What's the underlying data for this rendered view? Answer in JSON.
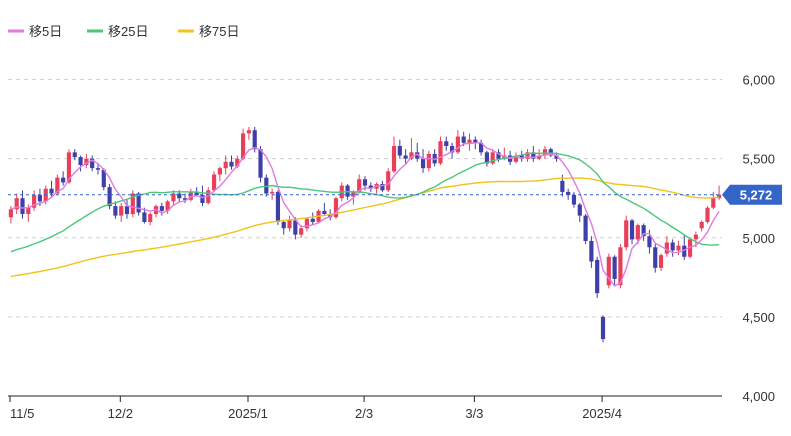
{
  "colors": {
    "ma5": "#e07be0",
    "ma25": "#4cc77a",
    "ma75": "#f0c419",
    "up": "#e8405a",
    "down": "#3f3fa8",
    "grid": "#d0d0d0",
    "axis": "#222222",
    "last_price": "#3465c8"
  },
  "chart_data": {
    "type": "candlestick",
    "legend": [
      {
        "key": "ma5",
        "label": "移5日"
      },
      {
        "key": "ma25",
        "label": "移25日"
      },
      {
        "key": "ma75",
        "label": "移75日"
      }
    ],
    "legend_position": "top-left",
    "ylim": [
      4000,
      6250
    ],
    "y_ticks": [
      {
        "value": 4000,
        "label": "4,000"
      },
      {
        "value": 4500,
        "label": "4,500"
      },
      {
        "value": 5000,
        "label": "5,000"
      },
      {
        "value": 5500,
        "label": "5,500"
      },
      {
        "value": 6000,
        "label": "6,000"
      }
    ],
    "x_ticks": [
      {
        "index": 0,
        "label": "11/5"
      },
      {
        "index": 19,
        "label": "12/2"
      },
      {
        "index": 41,
        "label": "2025/1"
      },
      {
        "index": 61,
        "label": "2/3"
      },
      {
        "index": 80,
        "label": "3/3"
      },
      {
        "index": 102,
        "label": "2025/4"
      }
    ],
    "grid": true,
    "last_price": {
      "value": 5272,
      "label": "5,272"
    },
    "candles": [
      [
        5130,
        5200,
        5090,
        5180
      ],
      [
        5180,
        5280,
        5150,
        5250
      ],
      [
        5250,
        5300,
        5120,
        5150
      ],
      [
        5150,
        5210,
        5100,
        5190
      ],
      [
        5190,
        5300,
        5170,
        5270
      ],
      [
        5270,
        5310,
        5200,
        5230
      ],
      [
        5230,
        5330,
        5210,
        5310
      ],
      [
        5310,
        5360,
        5260,
        5280
      ],
      [
        5280,
        5400,
        5270,
        5380
      ],
      [
        5380,
        5420,
        5330,
        5350
      ],
      [
        5350,
        5560,
        5340,
        5540
      ],
      [
        5540,
        5560,
        5490,
        5510
      ],
      [
        5510,
        5520,
        5420,
        5460
      ],
      [
        5460,
        5530,
        5440,
        5500
      ],
      [
        5500,
        5520,
        5420,
        5440
      ],
      [
        5440,
        5470,
        5400,
        5430
      ],
      [
        5430,
        5440,
        5300,
        5320
      ],
      [
        5320,
        5340,
        5180,
        5200
      ],
      [
        5200,
        5230,
        5120,
        5140
      ],
      [
        5140,
        5220,
        5100,
        5200
      ],
      [
        5200,
        5240,
        5120,
        5150
      ],
      [
        5150,
        5300,
        5130,
        5280
      ],
      [
        5280,
        5290,
        5140,
        5160
      ],
      [
        5160,
        5190,
        5090,
        5100
      ],
      [
        5100,
        5160,
        5080,
        5150
      ],
      [
        5150,
        5210,
        5130,
        5200
      ],
      [
        5200,
        5220,
        5140,
        5170
      ],
      [
        5170,
        5240,
        5150,
        5230
      ],
      [
        5230,
        5300,
        5210,
        5280
      ],
      [
        5280,
        5300,
        5230,
        5250
      ],
      [
        5250,
        5280,
        5220,
        5240
      ],
      [
        5240,
        5310,
        5230,
        5290
      ],
      [
        5290,
        5320,
        5260,
        5270
      ],
      [
        5270,
        5330,
        5200,
        5220
      ],
      [
        5220,
        5320,
        5210,
        5300
      ],
      [
        5300,
        5420,
        5290,
        5400
      ],
      [
        5400,
        5450,
        5360,
        5440
      ],
      [
        5440,
        5520,
        5400,
        5480
      ],
      [
        5480,
        5520,
        5430,
        5450
      ],
      [
        5450,
        5520,
        5440,
        5500
      ],
      [
        5500,
        5690,
        5490,
        5660
      ],
      [
        5660,
        5700,
        5620,
        5680
      ],
      [
        5680,
        5700,
        5540,
        5560
      ],
      [
        5560,
        5580,
        5350,
        5380
      ],
      [
        5380,
        5400,
        5260,
        5280
      ],
      [
        5280,
        5310,
        5240,
        5290
      ],
      [
        5290,
        5300,
        5080,
        5100
      ],
      [
        5100,
        5110,
        5020,
        5060
      ],
      [
        5060,
        5140,
        5040,
        5110
      ],
      [
        5110,
        5130,
        4990,
        5020
      ],
      [
        5020,
        5080,
        5000,
        5060
      ],
      [
        5060,
        5130,
        5040,
        5120
      ],
      [
        5120,
        5160,
        5080,
        5100
      ],
      [
        5100,
        5180,
        5090,
        5170
      ],
      [
        5170,
        5220,
        5140,
        5150
      ],
      [
        5150,
        5180,
        5110,
        5130
      ],
      [
        5130,
        5260,
        5120,
        5250
      ],
      [
        5250,
        5350,
        5230,
        5330
      ],
      [
        5330,
        5340,
        5240,
        5260
      ],
      [
        5260,
        5300,
        5210,
        5290
      ],
      [
        5290,
        5400,
        5280,
        5370
      ],
      [
        5370,
        5390,
        5300,
        5330
      ],
      [
        5330,
        5350,
        5290,
        5310
      ],
      [
        5310,
        5350,
        5280,
        5340
      ],
      [
        5340,
        5360,
        5290,
        5300
      ],
      [
        5300,
        5440,
        5290,
        5420
      ],
      [
        5420,
        5640,
        5410,
        5580
      ],
      [
        5580,
        5620,
        5500,
        5520
      ],
      [
        5520,
        5560,
        5470,
        5500
      ],
      [
        5500,
        5630,
        5490,
        5540
      ],
      [
        5540,
        5600,
        5480,
        5500
      ],
      [
        5500,
        5560,
        5410,
        5440
      ],
      [
        5440,
        5550,
        5420,
        5530
      ],
      [
        5530,
        5560,
        5450,
        5470
      ],
      [
        5470,
        5640,
        5460,
        5610
      ],
      [
        5610,
        5640,
        5550,
        5580
      ],
      [
        5580,
        5600,
        5500,
        5540
      ],
      [
        5540,
        5680,
        5530,
        5640
      ],
      [
        5640,
        5670,
        5580,
        5600
      ],
      [
        5600,
        5660,
        5550,
        5620
      ],
      [
        5620,
        5640,
        5560,
        5600
      ],
      [
        5600,
        5620,
        5520,
        5540
      ],
      [
        5540,
        5550,
        5450,
        5470
      ],
      [
        5470,
        5560,
        5460,
        5540
      ],
      [
        5540,
        5560,
        5480,
        5500
      ],
      [
        5500,
        5570,
        5490,
        5520
      ],
      [
        5520,
        5550,
        5460,
        5480
      ],
      [
        5480,
        5540,
        5470,
        5520
      ],
      [
        5520,
        5550,
        5480,
        5500
      ],
      [
        5500,
        5560,
        5480,
        5540
      ],
      [
        5540,
        5580,
        5480,
        5500
      ],
      [
        5500,
        5560,
        5490,
        5520
      ],
      [
        5520,
        5580,
        5500,
        5560
      ],
      [
        5560,
        5570,
        5510,
        5520
      ],
      [
        5520,
        5540,
        5480,
        5500
      ],
      [
        5360,
        5400,
        5260,
        5290
      ],
      [
        5290,
        5310,
        5240,
        5270
      ],
      [
        5270,
        5290,
        5190,
        5210
      ],
      [
        5210,
        5220,
        5100,
        5140
      ],
      [
        5140,
        5150,
        4960,
        4980
      ],
      [
        4980,
        5010,
        4810,
        4850
      ],
      [
        4860,
        4880,
        4620,
        4650
      ],
      [
        4500,
        4510,
        4340,
        4360
      ],
      [
        4700,
        4900,
        4680,
        4880
      ],
      [
        4880,
        4890,
        4700,
        4740
      ],
      [
        4700,
        4960,
        4680,
        4940
      ],
      [
        4940,
        5140,
        4920,
        5110
      ],
      [
        5110,
        5120,
        4960,
        4990
      ],
      [
        4990,
        5090,
        4960,
        5080
      ],
      [
        5080,
        5090,
        4980,
        5010
      ],
      [
        5010,
        5050,
        4900,
        4940
      ],
      [
        4940,
        4960,
        4780,
        4810
      ],
      [
        4810,
        4900,
        4790,
        4890
      ],
      [
        4900,
        5010,
        4880,
        4970
      ],
      [
        4970,
        4990,
        4880,
        4920
      ],
      [
        4920,
        4980,
        4890,
        4950
      ],
      [
        4950,
        5020,
        4860,
        4880
      ],
      [
        4880,
        5000,
        4870,
        4990
      ],
      [
        4990,
        5040,
        4940,
        5020
      ],
      [
        5060,
        5110,
        5040,
        5100
      ],
      [
        5100,
        5200,
        5090,
        5190
      ],
      [
        5190,
        5290,
        5180,
        5250
      ],
      [
        5250,
        5330,
        5240,
        5272
      ]
    ]
  }
}
